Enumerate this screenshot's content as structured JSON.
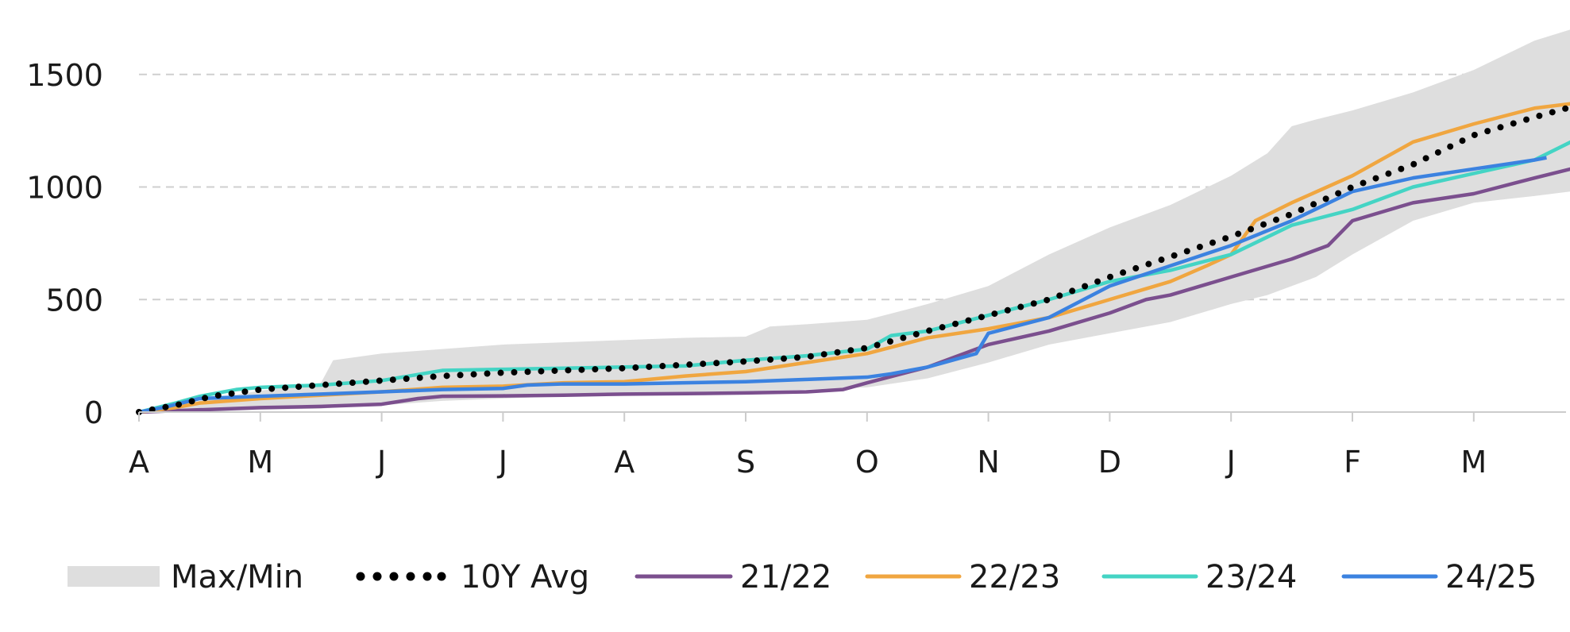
{
  "chart_data": {
    "type": "line",
    "title": "",
    "xlabel": "",
    "ylabel": "",
    "x_ticks": [
      "A",
      "M",
      "J",
      "J",
      "A",
      "S",
      "O",
      "N",
      "D",
      "J",
      "F",
      "M"
    ],
    "y_ticks": [
      0,
      500,
      1000,
      1500
    ],
    "ylim": [
      0,
      1700
    ],
    "xlim_months": [
      0,
      11.8
    ],
    "grid": "horizontal-dashed",
    "legend_position": "bottom",
    "band": {
      "name": "Max/Min",
      "color": "#dedede",
      "points": [
        [
          0.0,
          0,
          0
        ],
        [
          0.5,
          50,
          0
        ],
        [
          1.0,
          95,
          10
        ],
        [
          1.5,
          130,
          15
        ],
        [
          1.6,
          230,
          20
        ],
        [
          2.0,
          260,
          30
        ],
        [
          2.5,
          280,
          50
        ],
        [
          3.0,
          300,
          60
        ],
        [
          3.5,
          310,
          70
        ],
        [
          4.0,
          320,
          75
        ],
        [
          4.5,
          330,
          80
        ],
        [
          5.0,
          335,
          90
        ],
        [
          5.2,
          380,
          95
        ],
        [
          5.5,
          390,
          100
        ],
        [
          6.0,
          410,
          110
        ],
        [
          6.5,
          480,
          150
        ],
        [
          7.0,
          560,
          220
        ],
        [
          7.5,
          700,
          300
        ],
        [
          8.0,
          820,
          350
        ],
        [
          8.5,
          920,
          400
        ],
        [
          9.0,
          1050,
          480
        ],
        [
          9.3,
          1150,
          520
        ],
        [
          9.5,
          1270,
          560
        ],
        [
          9.7,
          1300,
          600
        ],
        [
          10.0,
          1340,
          700
        ],
        [
          10.5,
          1420,
          850
        ],
        [
          11.0,
          1520,
          930
        ],
        [
          11.5,
          1650,
          960
        ],
        [
          11.8,
          1700,
          980
        ]
      ]
    },
    "series": [
      {
        "name": "10Y Avg",
        "color": "#000000",
        "style": "dotted",
        "points": [
          [
            0,
            0
          ],
          [
            0.3,
            30
          ],
          [
            0.6,
            70
          ],
          [
            1.0,
            100
          ],
          [
            1.5,
            120
          ],
          [
            2.0,
            140
          ],
          [
            2.5,
            160
          ],
          [
            3.0,
            175
          ],
          [
            3.5,
            185
          ],
          [
            4.0,
            195
          ],
          [
            4.5,
            210
          ],
          [
            5.0,
            225
          ],
          [
            5.5,
            245
          ],
          [
            6.0,
            285
          ],
          [
            6.5,
            360
          ],
          [
            7.0,
            430
          ],
          [
            7.5,
            500
          ],
          [
            8.0,
            600
          ],
          [
            8.5,
            690
          ],
          [
            9.0,
            780
          ],
          [
            9.5,
            880
          ],
          [
            10.0,
            1000
          ],
          [
            10.5,
            1100
          ],
          [
            11.0,
            1230
          ],
          [
            11.5,
            1310
          ],
          [
            11.8,
            1355
          ]
        ]
      },
      {
        "name": "21/22",
        "color": "#7b4f8e",
        "style": "solid",
        "points": [
          [
            0,
            0
          ],
          [
            0.5,
            10
          ],
          [
            1.0,
            20
          ],
          [
            1.5,
            25
          ],
          [
            2.0,
            35
          ],
          [
            2.3,
            60
          ],
          [
            2.5,
            70
          ],
          [
            3.0,
            72
          ],
          [
            3.5,
            75
          ],
          [
            4.0,
            80
          ],
          [
            4.5,
            82
          ],
          [
            5.0,
            85
          ],
          [
            5.5,
            90
          ],
          [
            5.8,
            100
          ],
          [
            6.0,
            130
          ],
          [
            6.5,
            200
          ],
          [
            7.0,
            300
          ],
          [
            7.5,
            360
          ],
          [
            8.0,
            440
          ],
          [
            8.3,
            500
          ],
          [
            8.5,
            520
          ],
          [
            9.0,
            600
          ],
          [
            9.5,
            680
          ],
          [
            9.8,
            740
          ],
          [
            10.0,
            850
          ],
          [
            10.5,
            930
          ],
          [
            11.0,
            970
          ],
          [
            11.5,
            1040
          ],
          [
            11.8,
            1080
          ]
        ]
      },
      {
        "name": "22/23",
        "color": "#f0a640",
        "style": "solid",
        "points": [
          [
            0,
            0
          ],
          [
            0.3,
            20
          ],
          [
            0.5,
            40
          ],
          [
            1.0,
            60
          ],
          [
            1.5,
            75
          ],
          [
            2.0,
            90
          ],
          [
            2.5,
            110
          ],
          [
            3.0,
            115
          ],
          [
            3.5,
            130
          ],
          [
            4.0,
            135
          ],
          [
            4.5,
            160
          ],
          [
            5.0,
            180
          ],
          [
            5.5,
            220
          ],
          [
            6.0,
            260
          ],
          [
            6.5,
            330
          ],
          [
            7.0,
            370
          ],
          [
            7.5,
            420
          ],
          [
            8.0,
            500
          ],
          [
            8.5,
            580
          ],
          [
            8.8,
            650
          ],
          [
            9.0,
            700
          ],
          [
            9.2,
            850
          ],
          [
            9.5,
            930
          ],
          [
            10.0,
            1050
          ],
          [
            10.5,
            1200
          ],
          [
            11.0,
            1280
          ],
          [
            11.5,
            1350
          ],
          [
            11.8,
            1370
          ]
        ]
      },
      {
        "name": "23/24",
        "color": "#44d4c4",
        "style": "solid",
        "points": [
          [
            0,
            0
          ],
          [
            0.3,
            40
          ],
          [
            0.5,
            70
          ],
          [
            0.8,
            100
          ],
          [
            1.0,
            110
          ],
          [
            1.5,
            120
          ],
          [
            2.0,
            140
          ],
          [
            2.5,
            185
          ],
          [
            3.0,
            190
          ],
          [
            3.5,
            195
          ],
          [
            4.0,
            200
          ],
          [
            4.5,
            205
          ],
          [
            5.0,
            230
          ],
          [
            5.5,
            250
          ],
          [
            6.0,
            280
          ],
          [
            6.2,
            340
          ],
          [
            6.5,
            360
          ],
          [
            7.0,
            430
          ],
          [
            7.5,
            500
          ],
          [
            8.0,
            580
          ],
          [
            8.5,
            630
          ],
          [
            9.0,
            700
          ],
          [
            9.5,
            830
          ],
          [
            10.0,
            900
          ],
          [
            10.5,
            1000
          ],
          [
            11.0,
            1060
          ],
          [
            11.5,
            1120
          ],
          [
            11.8,
            1200
          ]
        ]
      },
      {
        "name": "24/25",
        "color": "#3b82e0",
        "style": "solid",
        "points": [
          [
            0,
            0
          ],
          [
            0.2,
            20
          ],
          [
            0.5,
            60
          ],
          [
            1.0,
            70
          ],
          [
            1.5,
            80
          ],
          [
            2.0,
            90
          ],
          [
            2.5,
            100
          ],
          [
            3.0,
            105
          ],
          [
            3.2,
            120
          ],
          [
            3.5,
            125
          ],
          [
            4.0,
            125
          ],
          [
            4.5,
            130
          ],
          [
            5.0,
            135
          ],
          [
            5.5,
            145
          ],
          [
            6.0,
            155
          ],
          [
            6.2,
            170
          ],
          [
            6.5,
            200
          ],
          [
            6.9,
            260
          ],
          [
            7.0,
            350
          ],
          [
            7.5,
            420
          ],
          [
            8.0,
            560
          ],
          [
            8.5,
            650
          ],
          [
            9.0,
            740
          ],
          [
            9.5,
            850
          ],
          [
            10.0,
            980
          ],
          [
            10.5,
            1040
          ],
          [
            11.0,
            1080
          ],
          [
            11.5,
            1120
          ],
          [
            11.6,
            1130
          ]
        ]
      }
    ]
  },
  "legend": {
    "band_label": "Max/Min",
    "avg_label": "10Y Avg",
    "s1_label": "21/22",
    "s2_label": "22/23",
    "s3_label": "23/24",
    "s4_label": "24/25"
  }
}
